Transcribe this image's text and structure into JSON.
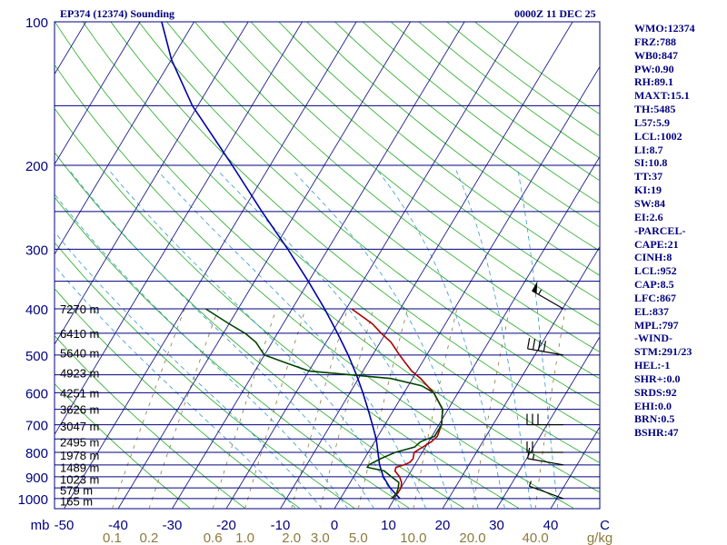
{
  "header": {
    "station_title": "EP374 (12374) Sounding",
    "valid_time": "0000Z 11 DEC 25"
  },
  "indices": [
    "WMO:12374",
    "FRZ:788",
    "WB0:847",
    "PW:0.90",
    "RH:89.1",
    "MAXT:15.1",
    "TH:5485",
    "L57:5.9",
    "LCL:1002",
    "LI:8.7",
    "SI:10.8",
    "TT:37",
    "KI:19",
    "SW:84",
    "EI:2.6",
    "-PARCEL-",
    "CAPE:21",
    "CINH:8",
    "LCL:952",
    "CAP:8.5",
    "LFC:867",
    "EL:837",
    "MPL:797",
    "-WIND-",
    "STM:291/23",
    "HEL:-1",
    "SHR+:0.0",
    "SRDS:92",
    "EHI:0.0",
    "BRN:0.5",
    "BSHR:47"
  ],
  "colors": {
    "frame": "#000080",
    "isobar": "#000080",
    "isotherm": "#1e1e8c",
    "dry_adiabat": "#22aa22",
    "moist_adiabat": "#3399cc",
    "mixing_ratio": "#8c7a3c",
    "temperature": "#aa0000",
    "dewpoint": "#004400",
    "parcel": "#0000aa",
    "wind_barb": "#000000",
    "axis_text": "#000080",
    "mixing_label": "#8c7a3c",
    "height_text": "#000000"
  },
  "chart_data": {
    "type": "skew-t",
    "title": "EP374 (12374) Sounding",
    "pressure_axis": {
      "unit": "mb",
      "range": [
        1050,
        100
      ],
      "scale": "log",
      "labeled_levels": [
        100,
        200,
        300,
        400,
        500,
        600,
        700,
        800,
        900,
        1000
      ],
      "isobar_levels": [
        100,
        150,
        200,
        250,
        300,
        350,
        400,
        450,
        500,
        550,
        600,
        650,
        700,
        750,
        800,
        850,
        900,
        950,
        1000
      ]
    },
    "temperature_axis": {
      "range": [
        -50,
        50
      ],
      "tick_labels": [
        "-50",
        "-40",
        "-30",
        "-20",
        "-10",
        "0",
        "10",
        "20",
        "30",
        "40",
        "C"
      ]
    },
    "mixing_ratio_labels": [
      "0.1",
      "0.2",
      "0.6",
      "1.0",
      "2.0",
      "3.0",
      "5.0",
      "10.0",
      "20.0",
      "40.0",
      "g/kg"
    ],
    "mixing_ratio_values": [
      0.1,
      0.2,
      0.6,
      1.0,
      2.0,
      3.0,
      5.0,
      10.0,
      20.0,
      40.0
    ],
    "height_labels": [
      {
        "p": 1012,
        "text": "165 m"
      },
      {
        "p": 960,
        "text": "579 m"
      },
      {
        "p": 910,
        "text": "1023 m"
      },
      {
        "p": 860,
        "text": "1489 m"
      },
      {
        "p": 810,
        "text": "1978 m"
      },
      {
        "p": 760,
        "text": "2495 m"
      },
      {
        "p": 705,
        "text": "3047 m"
      },
      {
        "p": 650,
        "text": "3626 m"
      },
      {
        "p": 600,
        "text": "4251 m"
      },
      {
        "p": 545,
        "text": "4923 m"
      },
      {
        "p": 495,
        "text": "5640 m"
      },
      {
        "p": 450,
        "text": "6410 m"
      },
      {
        "p": 400,
        "text": "7270 m"
      }
    ],
    "temperature": {
      "name": "Temperature",
      "p": [
        1000,
        975,
        950,
        925,
        900,
        875,
        860,
        850,
        840,
        825,
        800,
        780,
        760,
        740,
        700,
        650,
        600,
        560,
        540,
        520,
        500,
        470,
        450,
        430,
        400
      ],
      "t": [
        9.5,
        10.0,
        10.0,
        9.5,
        8.5,
        7.0,
        6.8,
        8.0,
        8.8,
        9.0,
        8.5,
        9.5,
        10.5,
        11.0,
        10.5,
        9.0,
        5.5,
        1.5,
        -1.0,
        -3.0,
        -5.0,
        -8.0,
        -10.8,
        -13.5,
        -19.0
      ]
    },
    "dewpoint": {
      "name": "Dewpoint",
      "p": [
        1000,
        975,
        950,
        925,
        900,
        875,
        860,
        850,
        825,
        800,
        780,
        760,
        740,
        700,
        650,
        600,
        580,
        560,
        540,
        520,
        500,
        470,
        450,
        430,
        400
      ],
      "t": [
        9.4,
        9.8,
        9.5,
        9.0,
        7.0,
        5.0,
        1.5,
        1.5,
        3.0,
        5.0,
        8.0,
        8.5,
        10.5,
        10.5,
        9.0,
        5.5,
        2.5,
        -4.0,
        -20.0,
        -25.0,
        -30.0,
        -33.0,
        -36.0,
        -40.0,
        -46.0
      ]
    },
    "parcel": {
      "name": "Parcel",
      "p": [
        1000,
        950,
        900,
        850,
        800,
        750,
        700,
        650,
        600,
        550,
        500,
        450,
        400,
        350,
        300,
        250,
        200,
        150,
        120,
        100
      ],
      "t": [
        11.0,
        8.0,
        5.5,
        3.5,
        1.8,
        0.0,
        -2.3,
        -4.8,
        -7.6,
        -10.8,
        -14.5,
        -18.9,
        -24.0,
        -30.1,
        -37.4,
        -46.4,
        -57.0,
        -71.0,
        -80.0,
        -86.0
      ]
    },
    "wind": {
      "p": [
        1000,
        850,
        800,
        700,
        500,
        400
      ],
      "direction_deg": [
        290,
        280,
        270,
        270,
        280,
        300
      ],
      "speed_kt": [
        5,
        15,
        20,
        30,
        40,
        55
      ]
    }
  }
}
